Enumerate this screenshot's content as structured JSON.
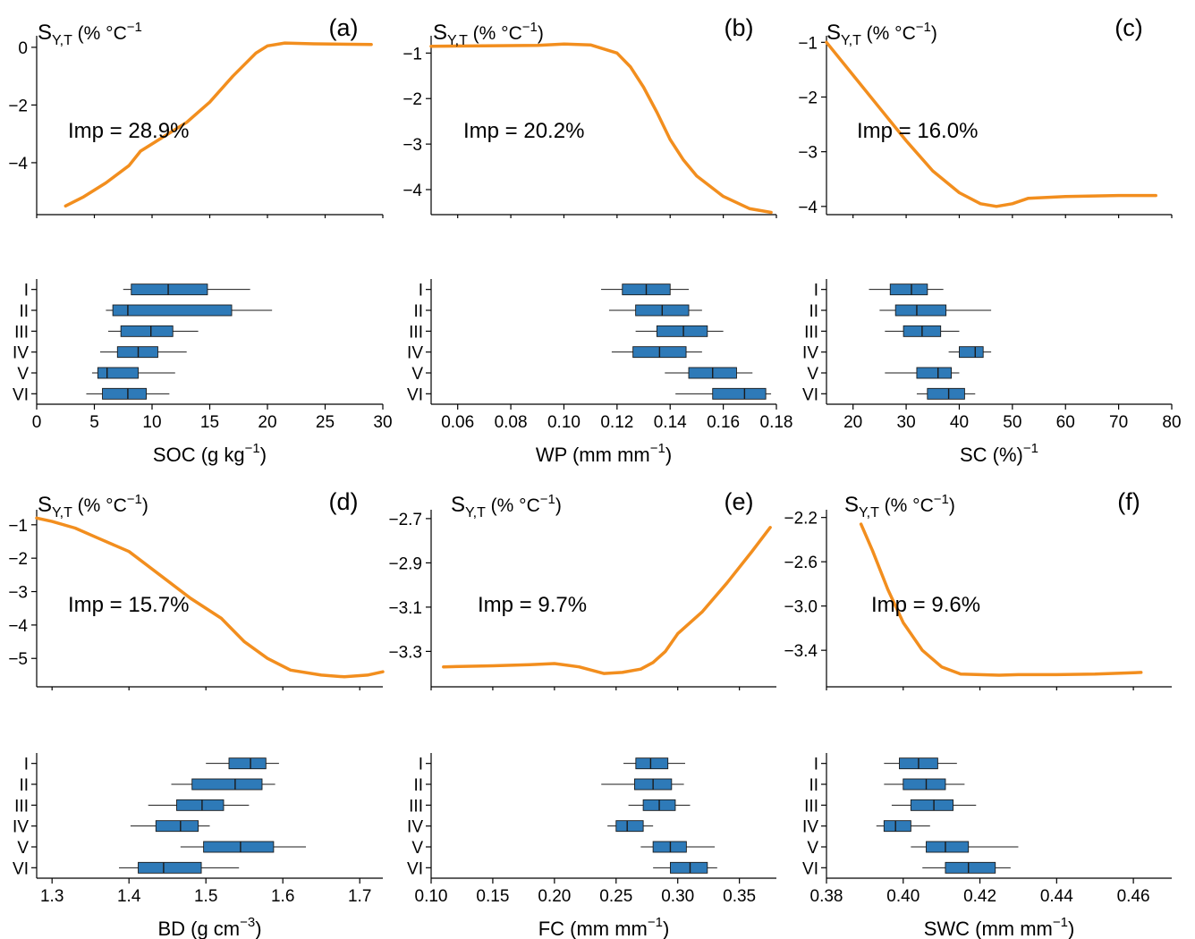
{
  "chart_data": [
    {
      "panel": "(a)",
      "type": "line",
      "ylabel_main": "S",
      "ylabel_sub": "Y,T",
      "ylabel_unit": " (% °C",
      "ylabel_sup": "−1",
      "ylabel_close": "",
      "imp": "Imp = 28.9%",
      "xlabel_main": "SOC (g kg",
      "xlabel_sup": "−1",
      "xlabel_close": ")",
      "xlim": [
        0,
        30
      ],
      "xticks": [
        0,
        5,
        10,
        15,
        20,
        25,
        30
      ],
      "xtick_labels": [
        "0",
        "5",
        "10",
        "15",
        "20",
        "25",
        "30"
      ],
      "ylim": [
        -5.8,
        0.4
      ],
      "yticks": [
        0,
        -2,
        -4
      ],
      "ytick_labels": [
        "0",
        "−2",
        "−4"
      ],
      "curve": [
        [
          2.5,
          -5.5
        ],
        [
          4,
          -5.2
        ],
        [
          6,
          -4.7
        ],
        [
          8,
          -4.1
        ],
        [
          9,
          -3.6
        ],
        [
          11,
          -3.1
        ],
        [
          13,
          -2.6
        ],
        [
          15,
          -1.9
        ],
        [
          17,
          -1.0
        ],
        [
          19,
          -0.2
        ],
        [
          20,
          0.05
        ],
        [
          21.5,
          0.15
        ],
        [
          24,
          0.12
        ],
        [
          29,
          0.1
        ]
      ],
      "categories": [
        "I",
        "II",
        "III",
        "IV",
        "V",
        "VI"
      ],
      "boxes": [
        {
          "min": 7.5,
          "q1": 8.2,
          "median": 11.4,
          "q3": 14.8,
          "max": 18.5
        },
        {
          "min": 6.0,
          "q1": 6.6,
          "median": 7.9,
          "q3": 16.9,
          "max": 20.4
        },
        {
          "min": 6.2,
          "q1": 7.3,
          "median": 9.9,
          "q3": 11.8,
          "max": 14.0
        },
        {
          "min": 5.5,
          "q1": 7.0,
          "median": 8.8,
          "q3": 10.5,
          "max": 13.0
        },
        {
          "min": 4.8,
          "q1": 5.3,
          "median": 6.1,
          "q3": 8.8,
          "max": 12.0
        },
        {
          "min": 4.3,
          "q1": 5.7,
          "median": 7.9,
          "q3": 9.5,
          "max": 11.5
        }
      ]
    },
    {
      "panel": "(b)",
      "type": "line",
      "ylabel_main": "S",
      "ylabel_sub": "Y,T",
      "ylabel_unit": " (% °C",
      "ylabel_sup": "−1",
      "ylabel_close": ")",
      "imp": "Imp = 20.2%",
      "xlabel_main": "WP (mm mm",
      "xlabel_sup": "−1",
      "xlabel_close": ")",
      "xlim": [
        0.05,
        0.18
      ],
      "xticks": [
        0.06,
        0.08,
        0.1,
        0.12,
        0.14,
        0.16,
        0.18
      ],
      "xtick_labels": [
        "0.06",
        "0.08",
        "0.10",
        "0.12",
        "0.14",
        "0.16",
        "0.18"
      ],
      "ylim": [
        -4.55,
        -0.62
      ],
      "yticks": [
        -1,
        -2,
        -3,
        -4
      ],
      "ytick_labels": [
        "−1",
        "−2",
        "−3",
        "−4"
      ],
      "curve": [
        [
          0.05,
          -0.85
        ],
        [
          0.07,
          -0.84
        ],
        [
          0.09,
          -0.83
        ],
        [
          0.1,
          -0.8
        ],
        [
          0.11,
          -0.82
        ],
        [
          0.12,
          -1.0
        ],
        [
          0.125,
          -1.3
        ],
        [
          0.13,
          -1.75
        ],
        [
          0.135,
          -2.3
        ],
        [
          0.14,
          -2.9
        ],
        [
          0.145,
          -3.35
        ],
        [
          0.15,
          -3.7
        ],
        [
          0.16,
          -4.15
        ],
        [
          0.17,
          -4.42
        ],
        [
          0.178,
          -4.5
        ]
      ],
      "categories": [
        "I",
        "II",
        "III",
        "IV",
        "V",
        "VI"
      ],
      "boxes": [
        {
          "min": 0.114,
          "q1": 0.122,
          "median": 0.131,
          "q3": 0.14,
          "max": 0.147
        },
        {
          "min": 0.117,
          "q1": 0.127,
          "median": 0.137,
          "q3": 0.147,
          "max": 0.152
        },
        {
          "min": 0.127,
          "q1": 0.135,
          "median": 0.145,
          "q3": 0.154,
          "max": 0.16
        },
        {
          "min": 0.118,
          "q1": 0.126,
          "median": 0.136,
          "q3": 0.146,
          "max": 0.152
        },
        {
          "min": 0.138,
          "q1": 0.147,
          "median": 0.156,
          "q3": 0.165,
          "max": 0.171
        },
        {
          "min": 0.142,
          "q1": 0.156,
          "median": 0.168,
          "q3": 0.176,
          "max": 0.178
        }
      ]
    },
    {
      "panel": "(c)",
      "type": "line",
      "ylabel_main": "S",
      "ylabel_sub": "Y,T",
      "ylabel_unit": " (% °C",
      "ylabel_sup": "−1",
      "ylabel_close": ")",
      "imp": "Imp = 16.0%",
      "xlabel_main": "SC (%)",
      "xlabel_sup": "−1",
      "xlabel_close": "",
      "xlim": [
        15,
        80
      ],
      "xticks": [
        20,
        30,
        40,
        50,
        60,
        70,
        80
      ],
      "xtick_labels": [
        "20",
        "30",
        "40",
        "50",
        "60",
        "70",
        "80"
      ],
      "ylim": [
        -4.15,
        -0.88
      ],
      "yticks": [
        -1,
        -2,
        -3,
        -4
      ],
      "ytick_labels": [
        "−1",
        "−2",
        "−3",
        "−4"
      ],
      "curve": [
        [
          15,
          -1.0
        ],
        [
          20,
          -1.6
        ],
        [
          25,
          -2.2
        ],
        [
          30,
          -2.8
        ],
        [
          35,
          -3.35
        ],
        [
          40,
          -3.75
        ],
        [
          44,
          -3.95
        ],
        [
          47,
          -4.0
        ],
        [
          50,
          -3.95
        ],
        [
          53,
          -3.85
        ],
        [
          60,
          -3.82
        ],
        [
          70,
          -3.8
        ],
        [
          77,
          -3.8
        ]
      ],
      "categories": [
        "I",
        "II",
        "III",
        "IV",
        "V",
        "VI"
      ],
      "boxes": [
        {
          "min": 23.0,
          "q1": 27.0,
          "median": 31.0,
          "q3": 34.0,
          "max": 37.0
        },
        {
          "min": 25.0,
          "q1": 28.0,
          "median": 32.0,
          "q3": 37.5,
          "max": 46.0
        },
        {
          "min": 26.0,
          "q1": 29.5,
          "median": 33.0,
          "q3": 36.5,
          "max": 40.0
        },
        {
          "min": 38.0,
          "q1": 40.0,
          "median": 43.0,
          "q3": 44.5,
          "max": 46.0
        },
        {
          "min": 26.0,
          "q1": 32.0,
          "median": 36.0,
          "q3": 38.5,
          "max": 40.0
        },
        {
          "min": 32.0,
          "q1": 34.0,
          "median": 38.0,
          "q3": 41.0,
          "max": 43.0
        }
      ]
    },
    {
      "panel": "(d)",
      "type": "line",
      "ylabel_main": "S",
      "ylabel_sub": "Y,T",
      "ylabel_unit": " (% °C",
      "ylabel_sup": "−1",
      "ylabel_close": ")",
      "imp": "Imp = 15.7%",
      "xlabel_main": "BD (g cm",
      "xlabel_sup": "−3",
      "xlabel_close": ")",
      "xlim": [
        1.28,
        1.73
      ],
      "xticks": [
        1.3,
        1.4,
        1.5,
        1.6,
        1.7
      ],
      "xtick_labels": [
        "1.3",
        "1.4",
        "1.5",
        "1.6",
        "1.7"
      ],
      "ylim": [
        -5.85,
        -0.55
      ],
      "yticks": [
        -1,
        -2,
        -3,
        -4,
        -5
      ],
      "ytick_labels": [
        "−1",
        "−2",
        "−3",
        "−4",
        "−5"
      ],
      "curve": [
        [
          1.28,
          -0.8
        ],
        [
          1.3,
          -0.9
        ],
        [
          1.33,
          -1.1
        ],
        [
          1.36,
          -1.4
        ],
        [
          1.4,
          -1.8
        ],
        [
          1.44,
          -2.5
        ],
        [
          1.48,
          -3.2
        ],
        [
          1.52,
          -3.8
        ],
        [
          1.55,
          -4.5
        ],
        [
          1.58,
          -5.0
        ],
        [
          1.61,
          -5.35
        ],
        [
          1.65,
          -5.5
        ],
        [
          1.68,
          -5.55
        ],
        [
          1.71,
          -5.5
        ],
        [
          1.73,
          -5.4
        ]
      ],
      "categories": [
        "I",
        "II",
        "III",
        "IV",
        "V",
        "VI"
      ],
      "boxes": [
        {
          "min": 1.5,
          "q1": 1.53,
          "median": 1.558,
          "q3": 1.578,
          "max": 1.595
        },
        {
          "min": 1.455,
          "q1": 1.482,
          "median": 1.538,
          "q3": 1.573,
          "max": 1.59
        },
        {
          "min": 1.425,
          "q1": 1.462,
          "median": 1.495,
          "q3": 1.523,
          "max": 1.556
        },
        {
          "min": 1.402,
          "q1": 1.435,
          "median": 1.467,
          "q3": 1.49,
          "max": 1.505
        },
        {
          "min": 1.467,
          "q1": 1.497,
          "median": 1.545,
          "q3": 1.588,
          "max": 1.63
        },
        {
          "min": 1.387,
          "q1": 1.412,
          "median": 1.445,
          "q3": 1.494,
          "max": 1.543
        }
      ]
    },
    {
      "panel": "(e)",
      "type": "line",
      "ylabel_main": "S",
      "ylabel_sub": "Y,T",
      "ylabel_unit": " (% °C",
      "ylabel_sup": "−1",
      "ylabel_close": ")",
      "imp": "Imp = 9.7%",
      "xlabel_main": "FC (mm mm",
      "xlabel_sup": "−1",
      "xlabel_close": ")",
      "xlim": [
        0.1,
        0.38
      ],
      "xticks": [
        0.1,
        0.15,
        0.2,
        0.25,
        0.3,
        0.35
      ],
      "xtick_labels": [
        "0.10",
        "0.15",
        "0.20",
        "0.25",
        "0.30",
        "0.35"
      ],
      "ylim": [
        -3.46,
        -2.66
      ],
      "yticks": [
        -2.7,
        -2.9,
        -3.1,
        -3.3
      ],
      "ytick_labels": [
        "−2.7",
        "−2.9",
        "−3.1",
        "−3.3"
      ],
      "curve": [
        [
          0.11,
          -3.37
        ],
        [
          0.15,
          -3.365
        ],
        [
          0.18,
          -3.36
        ],
        [
          0.2,
          -3.355
        ],
        [
          0.22,
          -3.37
        ],
        [
          0.24,
          -3.4
        ],
        [
          0.255,
          -3.395
        ],
        [
          0.27,
          -3.38
        ],
        [
          0.28,
          -3.35
        ],
        [
          0.29,
          -3.3
        ],
        [
          0.3,
          -3.22
        ],
        [
          0.32,
          -3.12
        ],
        [
          0.34,
          -2.99
        ],
        [
          0.36,
          -2.85
        ],
        [
          0.375,
          -2.74
        ]
      ],
      "categories": [
        "I",
        "II",
        "III",
        "IV",
        "V",
        "VI"
      ],
      "boxes": [
        {
          "min": 0.256,
          "q1": 0.266,
          "median": 0.278,
          "q3": 0.292,
          "max": 0.306
        },
        {
          "min": 0.238,
          "q1": 0.265,
          "median": 0.28,
          "q3": 0.295,
          "max": 0.305
        },
        {
          "min": 0.26,
          "q1": 0.272,
          "median": 0.285,
          "q3": 0.298,
          "max": 0.31
        },
        {
          "min": 0.243,
          "q1": 0.25,
          "median": 0.259,
          "q3": 0.272,
          "max": 0.28
        },
        {
          "min": 0.27,
          "q1": 0.28,
          "median": 0.294,
          "q3": 0.307,
          "max": 0.33
        },
        {
          "min": 0.28,
          "q1": 0.294,
          "median": 0.31,
          "q3": 0.324,
          "max": 0.332
        }
      ]
    },
    {
      "panel": "(f)",
      "type": "line",
      "ylabel_main": "S",
      "ylabel_sub": "Y,T",
      "ylabel_unit": " (% °C",
      "ylabel_sup": "−1",
      "ylabel_close": ")",
      "imp": "Imp = 9.6%",
      "xlabel_main": "SWC (mm mm",
      "xlabel_sup": "−1",
      "xlabel_close": ")",
      "xlim": [
        0.38,
        0.47
      ],
      "xticks": [
        0.38,
        0.4,
        0.42,
        0.44,
        0.46
      ],
      "xtick_labels": [
        "0.38",
        "0.40",
        "0.42",
        "0.44",
        "0.46"
      ],
      "ylim": [
        -3.73,
        -2.13
      ],
      "yticks": [
        -2.2,
        -2.6,
        -3.0,
        -3.4
      ],
      "ytick_labels": [
        "−2.2",
        "−2.6",
        "−3.0",
        "−3.4"
      ],
      "curve": [
        [
          0.389,
          -2.26
        ],
        [
          0.392,
          -2.5
        ],
        [
          0.396,
          -2.85
        ],
        [
          0.4,
          -3.15
        ],
        [
          0.405,
          -3.4
        ],
        [
          0.41,
          -3.55
        ],
        [
          0.415,
          -3.615
        ],
        [
          0.42,
          -3.62
        ],
        [
          0.425,
          -3.625
        ],
        [
          0.43,
          -3.62
        ],
        [
          0.44,
          -3.62
        ],
        [
          0.45,
          -3.615
        ],
        [
          0.462,
          -3.6
        ]
      ],
      "categories": [
        "I",
        "II",
        "III",
        "IV",
        "V",
        "VI"
      ],
      "boxes": [
        {
          "min": 0.395,
          "q1": 0.399,
          "median": 0.404,
          "q3": 0.409,
          "max": 0.414
        },
        {
          "min": 0.395,
          "q1": 0.4,
          "median": 0.406,
          "q3": 0.411,
          "max": 0.416
        },
        {
          "min": 0.397,
          "q1": 0.402,
          "median": 0.408,
          "q3": 0.413,
          "max": 0.419
        },
        {
          "min": 0.393,
          "q1": 0.395,
          "median": 0.398,
          "q3": 0.402,
          "max": 0.407
        },
        {
          "min": 0.402,
          "q1": 0.406,
          "median": 0.411,
          "q3": 0.417,
          "max": 0.43
        },
        {
          "min": 0.405,
          "q1": 0.411,
          "median": 0.417,
          "q3": 0.424,
          "max": 0.428
        }
      ]
    }
  ]
}
